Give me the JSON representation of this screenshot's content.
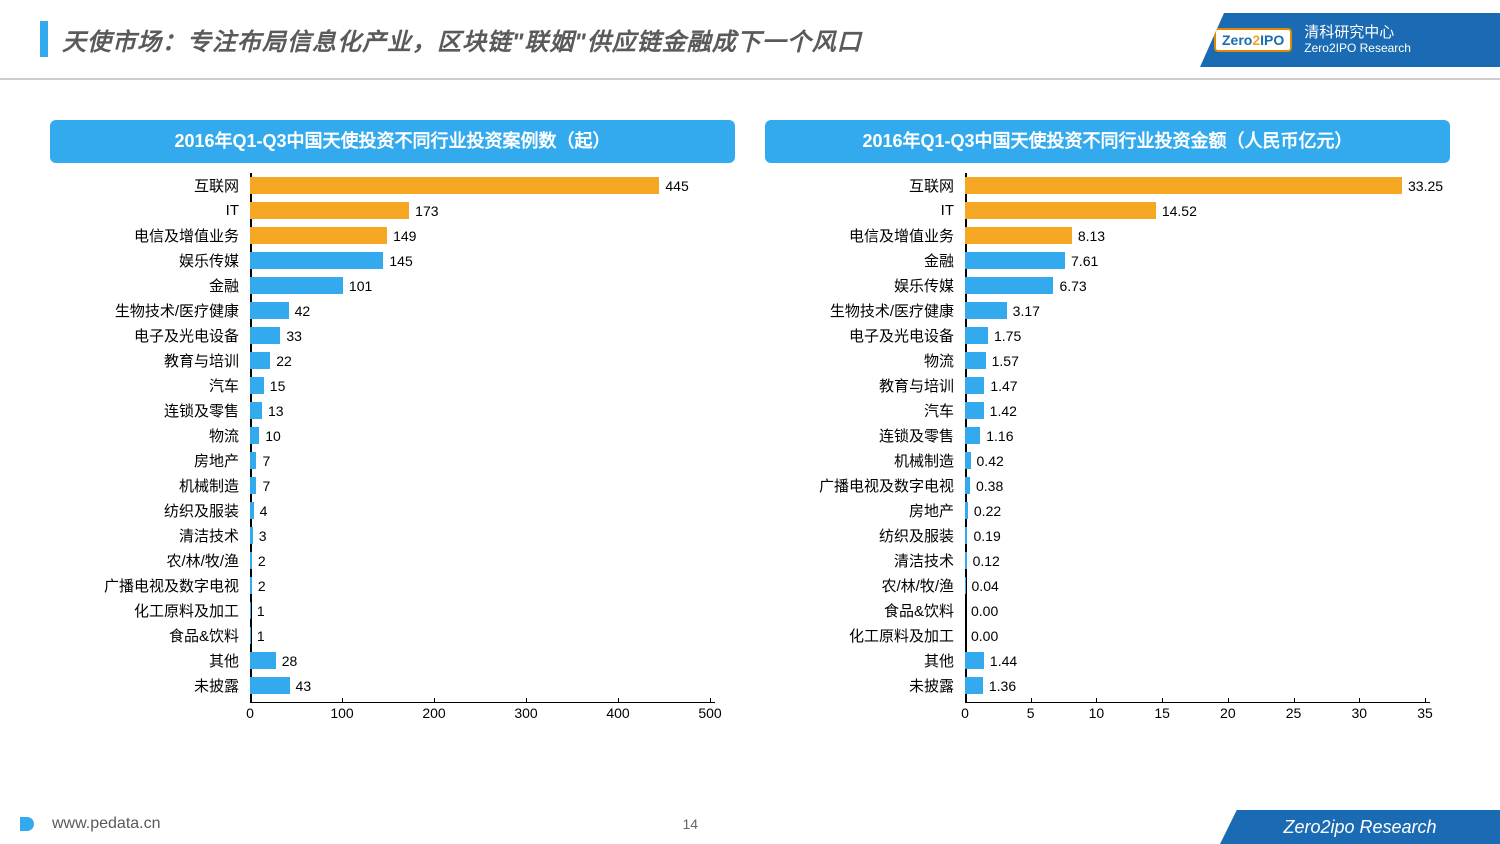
{
  "page": {
    "title": "天使市场：专注布局信息化产业，区块链\"联姻\"供应链金融成下一个风口",
    "number": "14",
    "url": "www.pedata.cn",
    "brand_footer": "Zero2ipo Research",
    "logo_text": "Zero2IPO",
    "logo_cn": "清科研究中心",
    "logo_en": "Zero2IPO Research"
  },
  "colors": {
    "accent_blue": "#33aaee",
    "dark_blue": "#1a6bb3",
    "bar_orange": "#f5a623",
    "bar_blue": "#33aaee",
    "text": "#000000",
    "grey": "#5a5a5a"
  },
  "chart_left": {
    "title": "2016年Q1-Q3中国天使投资不同行业投资案例数（起）",
    "type": "bar-horizontal",
    "xmax": 500,
    "xtick_step": 100,
    "xticks": [
      "0",
      "100",
      "200",
      "300",
      "400",
      "500"
    ],
    "value_decimals": 0,
    "bars": [
      {
        "label": "互联网",
        "value": 445,
        "color": "#f5a623"
      },
      {
        "label": "IT",
        "value": 173,
        "color": "#f5a623"
      },
      {
        "label": "电信及增值业务",
        "value": 149,
        "color": "#f5a623"
      },
      {
        "label": "娱乐传媒",
        "value": 145,
        "color": "#33aaee"
      },
      {
        "label": "金融",
        "value": 101,
        "color": "#33aaee"
      },
      {
        "label": "生物技术/医疗健康",
        "value": 42,
        "color": "#33aaee"
      },
      {
        "label": "电子及光电设备",
        "value": 33,
        "color": "#33aaee"
      },
      {
        "label": "教育与培训",
        "value": 22,
        "color": "#33aaee"
      },
      {
        "label": "汽车",
        "value": 15,
        "color": "#33aaee"
      },
      {
        "label": "连锁及零售",
        "value": 13,
        "color": "#33aaee"
      },
      {
        "label": "物流",
        "value": 10,
        "color": "#33aaee"
      },
      {
        "label": "房地产",
        "value": 7,
        "color": "#33aaee"
      },
      {
        "label": "机械制造",
        "value": 7,
        "color": "#33aaee"
      },
      {
        "label": "纺织及服装",
        "value": 4,
        "color": "#33aaee"
      },
      {
        "label": "清洁技术",
        "value": 3,
        "color": "#33aaee"
      },
      {
        "label": "农/林/牧/渔",
        "value": 2,
        "color": "#33aaee"
      },
      {
        "label": "广播电视及数字电视",
        "value": 2,
        "color": "#33aaee"
      },
      {
        "label": "化工原料及加工",
        "value": 1,
        "color": "#33aaee"
      },
      {
        "label": "食品&饮料",
        "value": 1,
        "color": "#33aaee"
      },
      {
        "label": "其他",
        "value": 28,
        "color": "#33aaee"
      },
      {
        "label": "未披露",
        "value": 43,
        "color": "#33aaee"
      }
    ]
  },
  "chart_right": {
    "title": "2016年Q1-Q3中国天使投资不同行业投资金额（人民币亿元）",
    "type": "bar-horizontal",
    "xmax": 35,
    "xtick_step": 5,
    "xticks": [
      "0",
      "5",
      "10",
      "15",
      "20",
      "25",
      "30",
      "35"
    ],
    "value_decimals": 2,
    "bars": [
      {
        "label": "互联网",
        "value": 33.25,
        "color": "#f5a623"
      },
      {
        "label": "IT",
        "value": 14.52,
        "color": "#f5a623"
      },
      {
        "label": "电信及增值业务",
        "value": 8.13,
        "color": "#f5a623"
      },
      {
        "label": "金融",
        "value": 7.61,
        "color": "#33aaee"
      },
      {
        "label": "娱乐传媒",
        "value": 6.73,
        "color": "#33aaee"
      },
      {
        "label": "生物技术/医疗健康",
        "value": 3.17,
        "color": "#33aaee"
      },
      {
        "label": "电子及光电设备",
        "value": 1.75,
        "color": "#33aaee"
      },
      {
        "label": "物流",
        "value": 1.57,
        "color": "#33aaee"
      },
      {
        "label": "教育与培训",
        "value": 1.47,
        "color": "#33aaee"
      },
      {
        "label": "汽车",
        "value": 1.42,
        "color": "#33aaee"
      },
      {
        "label": "连锁及零售",
        "value": 1.16,
        "color": "#33aaee"
      },
      {
        "label": "机械制造",
        "value": 0.42,
        "color": "#33aaee"
      },
      {
        "label": "广播电视及数字电视",
        "value": 0.38,
        "color": "#33aaee"
      },
      {
        "label": "房地产",
        "value": 0.22,
        "color": "#33aaee"
      },
      {
        "label": "纺织及服装",
        "value": 0.19,
        "color": "#33aaee"
      },
      {
        "label": "清洁技术",
        "value": 0.12,
        "color": "#33aaee"
      },
      {
        "label": "农/林/牧/渔",
        "value": 0.04,
        "color": "#33aaee"
      },
      {
        "label": "食品&饮料",
        "value": 0.0,
        "color": "#33aaee"
      },
      {
        "label": "化工原料及加工",
        "value": 0.0,
        "color": "#33aaee"
      },
      {
        "label": "其他",
        "value": 1.44,
        "color": "#33aaee"
      },
      {
        "label": "未披露",
        "value": 1.36,
        "color": "#33aaee"
      }
    ]
  }
}
